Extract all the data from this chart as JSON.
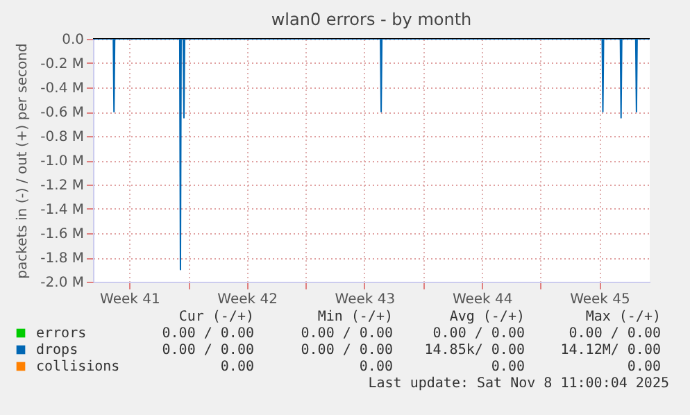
{
  "chart_data": {
    "type": "line",
    "title": "wlan0 errors - by month",
    "ylabel": "packets in (-) / out (+) per second",
    "xlim": [
      "2025-10-06T08:00",
      "2025-11-08T12:00"
    ],
    "ylim": [
      -2000000,
      0
    ],
    "xticks": [
      {
        "value": "2025-10-08T12:00",
        "label": "Week 41"
      },
      {
        "value": "2025-10-12",
        "label": null
      },
      {
        "value": "2025-10-15T12:00",
        "label": "Week 42"
      },
      {
        "value": "2025-10-19",
        "label": null
      },
      {
        "value": "2025-10-22T12:00",
        "label": "Week 43"
      },
      {
        "value": "2025-10-26",
        "label": null
      },
      {
        "value": "2025-10-29T12:00",
        "label": "Week 44"
      },
      {
        "value": "2025-11-02",
        "label": null
      },
      {
        "value": "2025-11-05T12:00",
        "label": "Week 45"
      }
    ],
    "yticks": [
      {
        "value": 0,
        "label": "0.0"
      },
      {
        "value": -200000,
        "label": "-0.2 M"
      },
      {
        "value": -400000,
        "label": "-0.4 M"
      },
      {
        "value": -600000,
        "label": "-0.6 M"
      },
      {
        "value": -800000,
        "label": "-0.8 M"
      },
      {
        "value": -1000000,
        "label": "-1.0 M"
      },
      {
        "value": -1200000,
        "label": "-1.2 M"
      },
      {
        "value": -1400000,
        "label": "-1.4 M"
      },
      {
        "value": -1600000,
        "label": "-1.6 M"
      },
      {
        "value": -1800000,
        "label": "-1.8 M"
      },
      {
        "value": -2000000,
        "label": "-2.0 M"
      }
    ],
    "grid": true,
    "legend": "bottom",
    "series": [
      {
        "name": "errors",
        "color": "#00cc00"
      },
      {
        "name": "drops",
        "color": "#0066b3",
        "x": [
          "2025-10-06T08:00",
          "2025-10-07T13:00",
          "2025-10-07T14:00",
          "2025-10-07T15:00",
          "2025-10-11T12:00",
          "2025-10-11T13:00",
          "2025-10-11T14:00",
          "2025-10-11T17:00",
          "2025-10-11T18:00",
          "2025-10-11T19:00",
          "2025-10-23T11:00",
          "2025-10-23T12:00",
          "2025-10-23T13:00",
          "2025-11-05T16:00",
          "2025-11-05T17:00",
          "2025-11-05T18:00",
          "2025-11-06T18:00",
          "2025-11-06T19:00",
          "2025-11-06T20:00",
          "2025-11-07T16:00",
          "2025-11-07T17:00",
          "2025-11-07T18:00",
          "2025-11-08T12:00"
        ],
        "values": [
          0,
          0,
          -600000,
          0,
          0,
          -1900000,
          0,
          0,
          -650000,
          0,
          0,
          -600000,
          0,
          0,
          -600000,
          0,
          0,
          -650000,
          0,
          0,
          -600000,
          0,
          0
        ]
      },
      {
        "name": "collisions",
        "color": "#ff8000"
      }
    ],
    "annotations": [
      "Cur (-/+)",
      "Min (-/+)",
      "Avg (-/+)",
      "Max (-/+)",
      "0.00 /  0.00",
      "0.00 /  0.00",
      "0.00 /  0.00",
      "0.00 /  0.00",
      "0.00 /  0.00",
      "0.00 /  0.00",
      "14.85k/  0.00",
      "14.12M/  0.00",
      "0.00",
      "0.00",
      "0.00",
      "0.00",
      "Last update: Sat Nov  8 11:00:04 2025"
    ]
  }
}
